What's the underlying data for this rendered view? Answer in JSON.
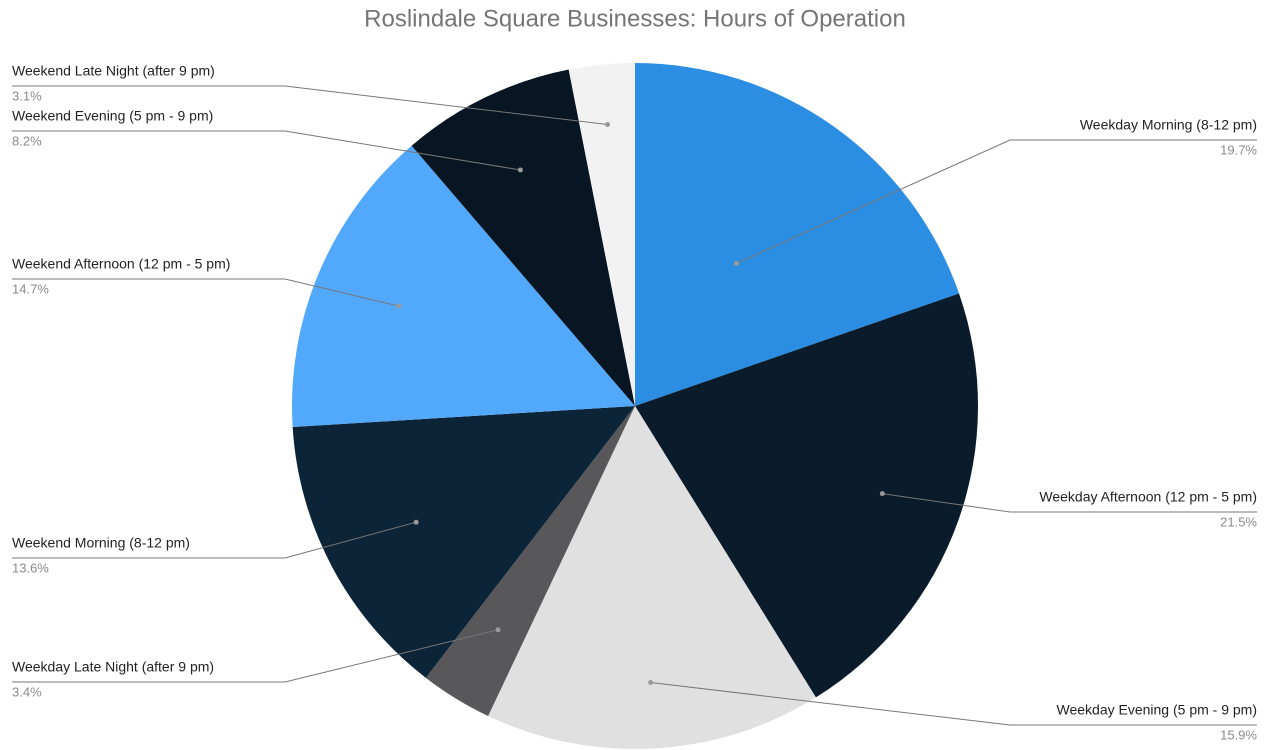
{
  "chart_data": {
    "type": "pie",
    "title": "Roslindale Square Businesses: Hours of Operation",
    "categories": [
      "Weekday Morning (8-12 pm)",
      "Weekday Afternoon (12 pm - 5 pm)",
      "Weekday Evening (5 pm - 9 pm)",
      "Weekday Late Night (after 9 pm)",
      "Weekend Morning (8-12 pm)",
      "Weekend Afternoon (12 pm - 5 pm)",
      "Weekend Evening (5 pm - 9 pm)",
      "Weekend Late Night (after 9 pm)"
    ],
    "values": [
      19.7,
      21.5,
      15.9,
      3.4,
      13.6,
      14.7,
      8.2,
      3.1
    ],
    "value_labels": [
      "19.7%",
      "21.5%",
      "15.9%",
      "3.4%",
      "13.6%",
      "14.7%",
      "8.2%",
      "3.1%"
    ],
    "colors": [
      "#2b8ee3",
      "#0a1c2c",
      "#e0e0e0",
      "#58585a",
      "#0c2438",
      "#52a9fb",
      "#081522",
      "#f2f2f2"
    ]
  }
}
